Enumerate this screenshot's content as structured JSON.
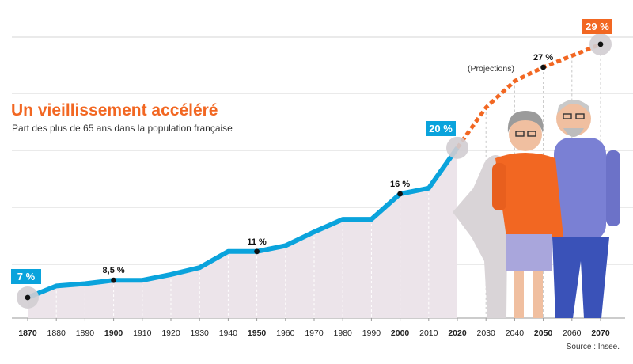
{
  "chart_data": {
    "type": "line",
    "title": "Un vieillissement accéléré",
    "subtitle": "Part des plus de 65 ans dans la population française",
    "source": "Source : Insee.",
    "projection_label": "(Projections)",
    "x_ticks": [
      "1870",
      "1880",
      "1890",
      "1900",
      "1910",
      "1920",
      "1930",
      "1940",
      "1950",
      "1960",
      "1970",
      "1980",
      "1990",
      "2000",
      "2010",
      "2020",
      "2030",
      "2040",
      "2050",
      "2060",
      "2070"
    ],
    "bold_ticks": [
      "1870",
      "1900",
      "1950",
      "2000",
      "2020",
      "2050",
      "2070"
    ],
    "ylim": [
      0,
      32
    ],
    "grid": true,
    "series": [
      {
        "style": "solid",
        "color": "#0aa3dc",
        "x": [
          1870,
          1880,
          1890,
          1900,
          1910,
          1920,
          1930,
          1940,
          1950,
          1960,
          1970,
          1980,
          1990,
          2000,
          2010,
          2020
        ],
        "y": [
          7,
          8,
          8.2,
          8.5,
          8.5,
          9,
          9.6,
          11,
          11,
          11.5,
          12.7,
          13.8,
          13.8,
          16,
          16.5,
          20
        ]
      },
      {
        "style": "dotted",
        "color": "#f26722",
        "x": [
          2020,
          2030,
          2040,
          2050,
          2060,
          2070
        ],
        "y": [
          20,
          23.5,
          25.8,
          27,
          28,
          29
        ]
      }
    ],
    "annotations": [
      {
        "x": 1870,
        "y": 7,
        "text": "7 %",
        "style": "box-blue",
        "dot": true,
        "halo": true
      },
      {
        "x": 1900,
        "y": 8.5,
        "text": "8,5 %",
        "style": "plain",
        "dot": true
      },
      {
        "x": 1950,
        "y": 11,
        "text": "11 %",
        "style": "plain",
        "dot": true
      },
      {
        "x": 2000,
        "y": 16,
        "text": "16 %",
        "style": "plain",
        "dot": true
      },
      {
        "x": 2020,
        "y": 20,
        "text": "20 %",
        "style": "box-blue",
        "dot": false,
        "halo": true
      },
      {
        "x": 2050,
        "y": 27,
        "text": "27 %",
        "style": "plain",
        "dot": true
      },
      {
        "x": 2070,
        "y": 29,
        "text": "29 %",
        "style": "box-orange",
        "dot": true,
        "halo": true
      }
    ],
    "colors": {
      "title": "#f26722",
      "area": "#ece4ea",
      "grid": "#d6d6d6",
      "line": "#0aa3dc",
      "projection": "#f26722"
    }
  }
}
